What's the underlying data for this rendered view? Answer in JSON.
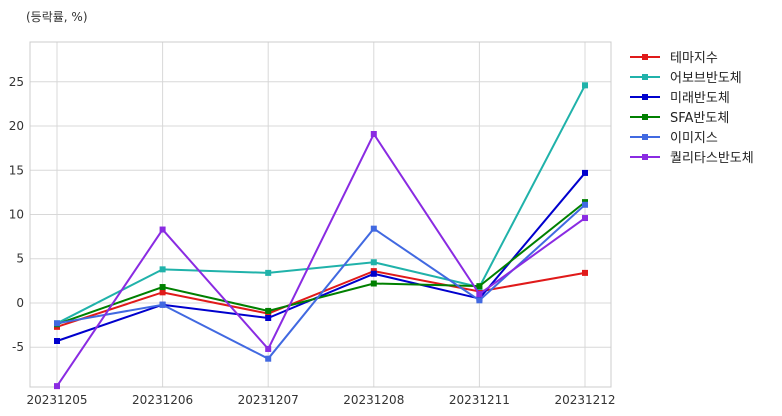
{
  "chart_data": {
    "type": "line",
    "unit_label": "(등락률, %)",
    "x": [
      "20231205",
      "20231206",
      "20231207",
      "20231208",
      "20231211",
      "20231212"
    ],
    "ylim": [
      -9.5,
      29.5
    ],
    "yticks": [
      -5,
      0,
      5,
      10,
      15,
      20,
      25
    ],
    "ytick_labels": [
      "-5",
      "0",
      "5",
      "10",
      "15",
      "20",
      "25"
    ],
    "grid": true,
    "legend_position": "right",
    "series": [
      {
        "name": "테마지수",
        "color": "#e01a1a",
        "values": [
          -2.7,
          1.2,
          -1.2,
          3.6,
          1.3,
          3.4
        ]
      },
      {
        "name": "어보브반도체",
        "color": "#20b2aa",
        "values": [
          -2.3,
          3.8,
          3.4,
          4.6,
          1.8,
          24.6
        ]
      },
      {
        "name": "미래반도체",
        "color": "#0000cd",
        "values": [
          -4.3,
          -0.2,
          -1.7,
          3.3,
          0.5,
          14.7
        ]
      },
      {
        "name": "SFA반도체",
        "color": "#008000",
        "values": [
          -2.4,
          1.8,
          -0.9,
          2.2,
          1.9,
          11.4
        ]
      },
      {
        "name": "이미지스",
        "color": "#4169e1",
        "values": [
          -2.3,
          -0.2,
          -6.3,
          8.4,
          0.3,
          11.1
        ]
      },
      {
        "name": "퀄리타스반도체",
        "color": "#8a2be2",
        "values": [
          -9.4,
          8.3,
          -5.2,
          19.1,
          1.0,
          9.6
        ]
      }
    ]
  }
}
